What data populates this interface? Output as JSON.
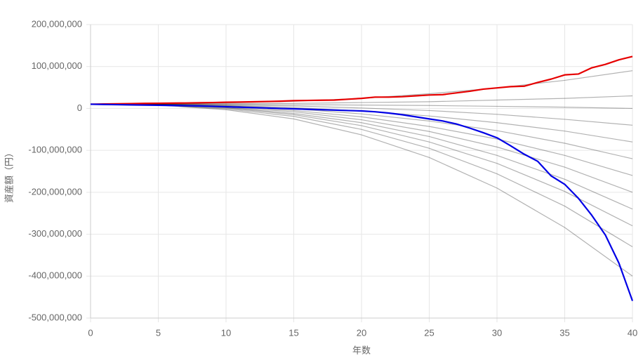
{
  "chart_data": {
    "type": "line",
    "x_label": "年数",
    "y_label": "資産額（円）",
    "x": [
      0,
      1,
      2,
      3,
      4,
      5,
      6,
      7,
      8,
      9,
      10,
      11,
      12,
      13,
      14,
      15,
      16,
      17,
      18,
      19,
      20,
      21,
      22,
      23,
      24,
      25,
      26,
      27,
      28,
      29,
      30,
      31,
      32,
      33,
      34,
      35,
      36,
      37,
      38,
      39,
      40
    ],
    "xlim": [
      0,
      40
    ],
    "xticks": [
      0,
      5,
      10,
      15,
      20,
      25,
      30,
      35,
      40
    ],
    "ylim": [
      -500000000,
      200000000
    ],
    "yticks": [
      {
        "value": -500000000,
        "label": "-500,000,000"
      },
      {
        "value": -400000000,
        "label": "-400,000,000"
      },
      {
        "value": -300000000,
        "label": "-300,000,000"
      },
      {
        "value": -200000000,
        "label": "-200,000,000"
      },
      {
        "value": -100000000,
        "label": "-100,000,000"
      },
      0,
      {
        "value": 100000000,
        "label": "100,000,000"
      },
      {
        "value": 200000000,
        "label": "200,000,000"
      }
    ],
    "grid": true,
    "series": [
      {
        "color": "rgba(0,0,0,0.3)",
        "x": [
          0,
          5,
          10,
          15,
          20,
          25,
          30,
          35,
          40
        ],
        "values": [
          10000000,
          10000000,
          13000000,
          17000000,
          24000000,
          35000000,
          49000000,
          67000000,
          90000000
        ]
      },
      {
        "color": "rgba(0,0,0,0.3)",
        "x": [
          0,
          5,
          10,
          15,
          20,
          25,
          30,
          35,
          40
        ],
        "values": [
          10000000,
          10000000,
          11000000,
          12000000,
          14000000,
          16000000,
          20000000,
          24000000,
          30000000
        ]
      },
      {
        "color": "rgba(0,0,0,0.3)",
        "x": [
          0,
          5,
          10,
          15,
          20,
          25,
          30,
          35,
          40
        ],
        "values": [
          10000000,
          10000000,
          10000000,
          9000000,
          8000000,
          7000000,
          5000000,
          3000000,
          0
        ]
      },
      {
        "color": "rgba(0,0,0,0.3)",
        "x": [
          0,
          5,
          10,
          15,
          20,
          25,
          30,
          35,
          40
        ],
        "values": [
          10000000,
          10000000,
          8000000,
          6000000,
          1000000,
          -5000000,
          -14000000,
          -26000000,
          -40000000
        ]
      },
      {
        "color": "rgba(0,0,0,0.3)",
        "x": [
          0,
          5,
          10,
          15,
          20,
          25,
          30,
          35,
          40
        ],
        "values": [
          10000000,
          10000000,
          7000000,
          2000000,
          -6000000,
          -18000000,
          -34000000,
          -54000000,
          -80000000
        ]
      },
      {
        "color": "rgba(0,0,0,0.3)",
        "x": [
          0,
          5,
          10,
          15,
          20,
          25,
          30,
          35,
          40
        ],
        "values": [
          10000000,
          9000000,
          6000000,
          -1000000,
          -13000000,
          -30000000,
          -53000000,
          -83000000,
          -120000000
        ]
      },
      {
        "color": "rgba(0,0,0,0.3)",
        "x": [
          0,
          5,
          10,
          15,
          20,
          25,
          30,
          35,
          40
        ],
        "values": [
          10000000,
          9000000,
          5000000,
          -5000000,
          -20000000,
          -43000000,
          -73000000,
          -112000000,
          -160000000
        ]
      },
      {
        "color": "rgba(0,0,0,0.3)",
        "x": [
          0,
          5,
          10,
          15,
          20,
          25,
          30,
          35,
          40
        ],
        "values": [
          10000000,
          9000000,
          3000000,
          -8000000,
          -27000000,
          -55000000,
          -92000000,
          -140000000,
          -200000000
        ]
      },
      {
        "color": "rgba(0,0,0,0.3)",
        "x": [
          0,
          5,
          10,
          15,
          20,
          25,
          30,
          35,
          40
        ],
        "values": [
          10000000,
          9000000,
          2000000,
          -12000000,
          -34000000,
          -67000000,
          -112000000,
          -169000000,
          -240000000
        ]
      },
      {
        "color": "rgba(0,0,0,0.3)",
        "x": [
          0,
          5,
          10,
          15,
          20,
          25,
          30,
          35,
          40
        ],
        "values": [
          10000000,
          8000000,
          1000000,
          -15000000,
          -41000000,
          -80000000,
          -131000000,
          -198000000,
          -280000000
        ]
      },
      {
        "color": "rgba(0,0,0,0.3)",
        "x": [
          0,
          5,
          10,
          15,
          20,
          25,
          30,
          35,
          40
        ],
        "values": [
          10000000,
          8000000,
          -1000000,
          -19000000,
          -50000000,
          -95000000,
          -156000000,
          -233000000,
          -330000000
        ]
      },
      {
        "color": "rgba(0,0,0,0.3)",
        "x": [
          0,
          5,
          10,
          15,
          20,
          25,
          30,
          35,
          40
        ],
        "values": [
          10000000,
          8000000,
          -3000000,
          -25000000,
          -63000000,
          -117000000,
          -190000000,
          -284000000,
          -400000000
        ]
      },
      {
        "color": "#e60000",
        "values": [
          10000000,
          10500000,
          11000000,
          11500000,
          12000000,
          12300000,
          12700000,
          13000000,
          13500000,
          14000000,
          14700000,
          15200000,
          15800000,
          16500000,
          17300000,
          18500000,
          19000000,
          19500000,
          20000000,
          22000000,
          24000000,
          27000000,
          27000000,
          28000000,
          30000000,
          32000000,
          33000000,
          37000000,
          41000000,
          46000000,
          49000000,
          52000000,
          53000000,
          62000000,
          70000000,
          80000000,
          82000000,
          97000000,
          105000000,
          116000000,
          124000000
        ]
      },
      {
        "color": "#0000e6",
        "values": [
          10000000,
          9500000,
          9000000,
          8500000,
          8000000,
          7500000,
          7000000,
          6500000,
          6000000,
          5000000,
          4000000,
          3000000,
          2000000,
          1000000,
          0,
          -1000000,
          -2000000,
          -3000000,
          -4000000,
          -5000000,
          -6000000,
          -8000000,
          -11000000,
          -15000000,
          -20000000,
          -25000000,
          -30000000,
          -37000000,
          -47000000,
          -58000000,
          -70000000,
          -89000000,
          -109000000,
          -126000000,
          -161000000,
          -181000000,
          -214000000,
          -255000000,
          -302000000,
          -369000000,
          -459000000
        ]
      }
    ]
  }
}
